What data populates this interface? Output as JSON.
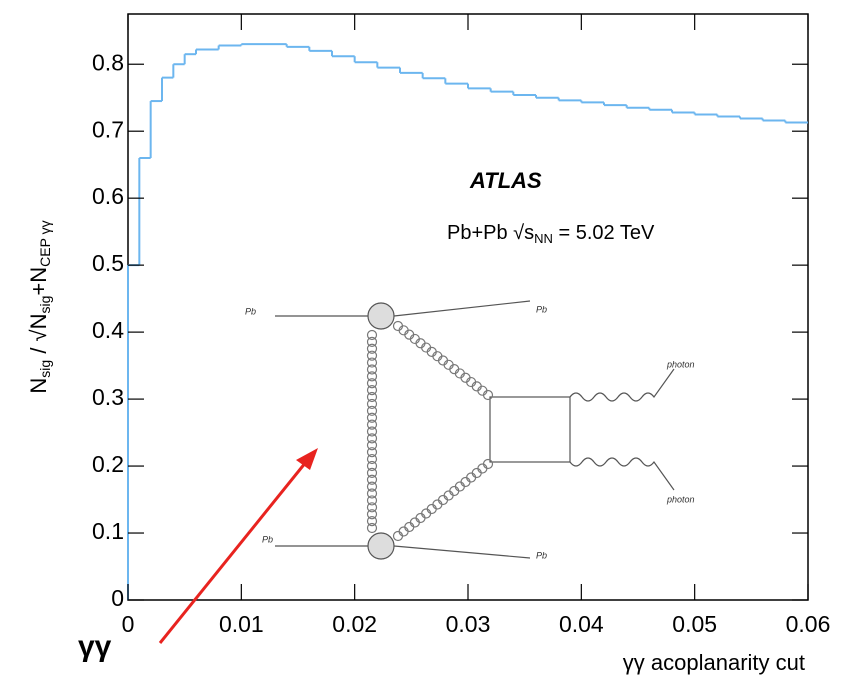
{
  "chart_data": {
    "type": "step",
    "xlabel": "γγ acoplanarity cut",
    "ylabel_parts": [
      "N",
      "sig",
      " / √",
      "N",
      "sig",
      "+N",
      "CEP γγ"
    ],
    "x": [
      0,
      0.001,
      0.002,
      0.003,
      0.004,
      0.005,
      0.006,
      0.008,
      0.01,
      0.012,
      0.014,
      0.016,
      0.018,
      0.02,
      0.022,
      0.024,
      0.026,
      0.028,
      0.03,
      0.032,
      0.034,
      0.036,
      0.038,
      0.04,
      0.042,
      0.044,
      0.046,
      0.048,
      0.05,
      0.052,
      0.054,
      0.056,
      0.058
    ],
    "series": [
      {
        "color": "#6cb6ef",
        "values": [
          0.5,
          0.66,
          0.745,
          0.78,
          0.8,
          0.815,
          0.822,
          0.828,
          0.83,
          0.83,
          0.826,
          0.82,
          0.812,
          0.803,
          0.795,
          0.787,
          0.779,
          0.771,
          0.764,
          0.759,
          0.754,
          0.75,
          0.746,
          0.743,
          0.739,
          0.735,
          0.732,
          0.728,
          0.725,
          0.722,
          0.719,
          0.716,
          0.713
        ]
      }
    ],
    "xlim": [
      0,
      0.06
    ],
    "ylim": [
      0,
      0.875
    ],
    "xticks": [
      0,
      0.01,
      0.02,
      0.03,
      0.04,
      0.05,
      0.06
    ],
    "yticks": [
      0,
      0.1,
      0.2,
      0.3,
      0.4,
      0.5,
      0.6,
      0.7,
      0.8
    ],
    "annotations": {
      "experiment": "ATLAS",
      "energy_parts": [
        "Pb+Pb ",
        "√",
        "s",
        "NN",
        " = 5.02 TeV"
      ],
      "arrow_label": "γγ"
    },
    "diagram": {
      "labels": [
        "Pb",
        "Pb",
        "Pb",
        "Pb",
        "photon",
        "photon"
      ]
    }
  }
}
